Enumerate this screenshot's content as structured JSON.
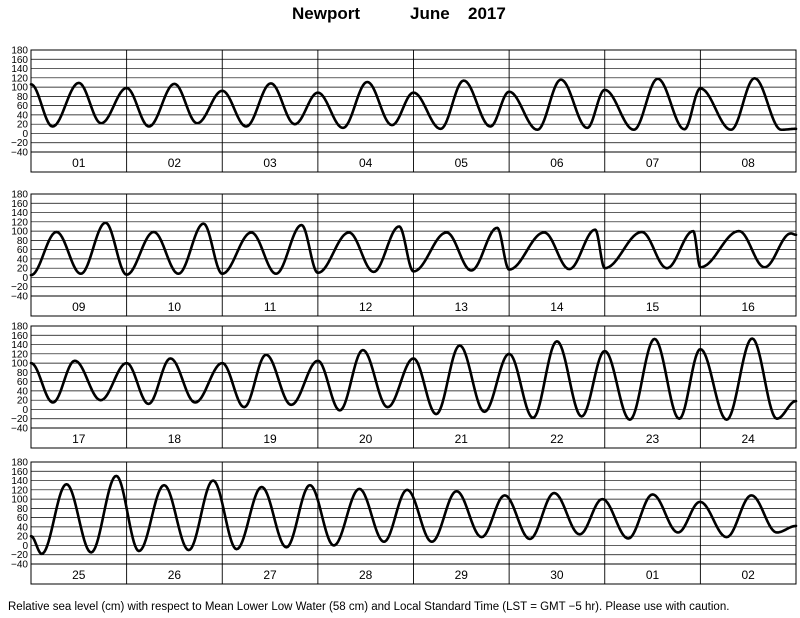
{
  "title": {
    "location": "Newport",
    "month": "June",
    "year": "2017"
  },
  "footnote": "Relative sea level (cm) with respect to Mean Lower Low Water (58 cm) and Local Standard Time (LST = GMT −5 hr). Please use with caution.",
  "chart_data": {
    "type": "line",
    "ylim": [
      -40,
      180
    ],
    "yticks": [
      -40,
      -20,
      0,
      20,
      40,
      60,
      80,
      100,
      120,
      140,
      160,
      180
    ],
    "ytick_labels": [
      "−40",
      "−20",
      "0",
      "20",
      "40",
      "60",
      "80",
      "100",
      "120",
      "140",
      "160",
      "180"
    ],
    "grid": true,
    "series_color": "#000000",
    "panels": [
      {
        "days": [
          "01",
          "02",
          "03",
          "04",
          "05",
          "06",
          "07",
          "08"
        ],
        "x_hours": [
          0,
          5.4,
          12,
          17.6,
          24,
          29.6,
          36,
          41.7,
          48,
          54,
          60.2,
          66.2,
          72,
          78.3,
          84.4,
          90.6,
          96,
          102.8,
          108.6,
          115.3,
          120,
          127.1,
          133,
          139.6,
          144,
          151.3,
          157.3,
          164,
          168,
          175.7,
          181.6,
          188.3,
          192
        ],
        "values": [
          106,
          15,
          109,
          22,
          98,
          15,
          107,
          22,
          92,
          15,
          108,
          20,
          88,
          12,
          111,
          18,
          88,
          10,
          114,
          15,
          90,
          8,
          116,
          12,
          94,
          8,
          118,
          9,
          97,
          8,
          119,
          8,
          10
        ]
      },
      {
        "days": [
          "09",
          "10",
          "11",
          "12",
          "13",
          "14",
          "15",
          "16"
        ],
        "x_hours": [
          0,
          6.4,
          12.5,
          18.7,
          24,
          30.8,
          37,
          43.3,
          48,
          55.3,
          61.5,
          67.9,
          72,
          79.8,
          86,
          92.4,
          96,
          104.3,
          110.5,
          117,
          120,
          128.8,
          135.1,
          141.6,
          144,
          153.3,
          159.6,
          166.2,
          168,
          177.7,
          184.1,
          190.7,
          192
        ],
        "values": [
          5,
          98,
          8,
          118,
          6,
          98,
          8,
          116,
          8,
          97,
          8,
          113,
          10,
          97,
          12,
          110,
          13,
          97,
          15,
          107,
          17,
          97,
          18,
          103,
          20,
          98,
          20,
          100,
          22,
          100,
          22,
          95,
          92
        ]
      },
      {
        "days": [
          "17",
          "18",
          "19",
          "20",
          "21",
          "22",
          "23",
          "24"
        ],
        "x_hours": [
          0,
          5.5,
          11,
          17.5,
          24,
          29.5,
          35,
          41.2,
          48,
          53.5,
          59,
          65.3,
          72,
          77.5,
          83.3,
          89.5,
          96,
          101.7,
          107.6,
          113.8,
          120,
          126,
          132,
          138.2,
          144,
          150.3,
          156.5,
          162.7,
          168,
          174.6,
          181,
          187.2,
          192
        ],
        "values": [
          100,
          15,
          105,
          20,
          100,
          12,
          110,
          15,
          100,
          5,
          118,
          10,
          105,
          -2,
          128,
          5,
          110,
          -10,
          138,
          -5,
          120,
          -18,
          147,
          -15,
          126,
          -22,
          152,
          -20,
          130,
          -22,
          153,
          -20,
          18
        ]
      },
      {
        "days": [
          "25",
          "26",
          "27",
          "28",
          "29",
          "30",
          "01",
          "02"
        ],
        "x_hours": [
          0,
          2.7,
          8.9,
          15.1,
          21.4,
          27.1,
          33.4,
          39.6,
          45.7,
          51.6,
          57.9,
          64.1,
          70,
          76,
          82.4,
          88.6,
          94.4,
          100.6,
          106.8,
          113.1,
          118.9,
          125.2,
          131.3,
          137.7,
          143.4,
          149.9,
          156,
          162.4,
          167.9,
          174.6,
          180.8,
          187.2,
          192
        ],
        "values": [
          20,
          -18,
          132,
          -15,
          150,
          -12,
          130,
          -10,
          140,
          -8,
          126,
          -4,
          130,
          0,
          122,
          8,
          120,
          8,
          117,
          18,
          108,
          14,
          113,
          24,
          100,
          15,
          110,
          28,
          94,
          18,
          108,
          28,
          42
        ]
      }
    ]
  }
}
